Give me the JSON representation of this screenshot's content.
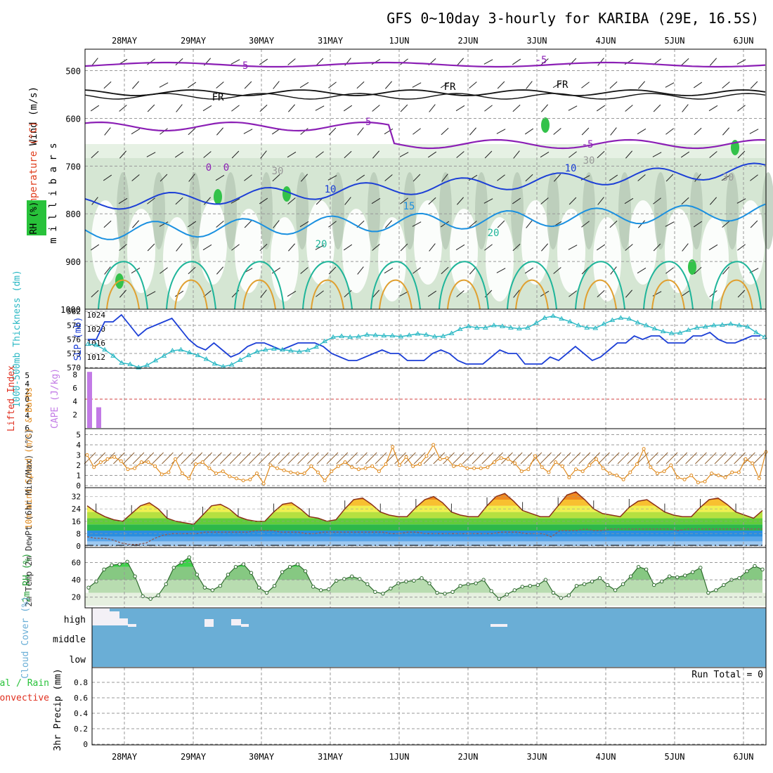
{
  "title": "GFS 0~10day 3-hourly for KARIBA (29E, 16.5S)",
  "dates": [
    "28MAY",
    "29MAY",
    "30MAY",
    "31MAY",
    "1JUN",
    "2JUN",
    "3JUN",
    "4JUN",
    "5JUN",
    "6JUN"
  ],
  "colors": {
    "purple": "#8b1fb5",
    "blue": "#1c3fd6",
    "ltblue": "#1a90e0",
    "teal": "#1fb59a",
    "orange": "#e0a030",
    "cyan": "#2ab8c4",
    "cape": "#c27ae6",
    "wind": "#e08a1c",
    "sky": "#6aaed6",
    "grid": "#999999"
  },
  "chart_data": [
    {
      "type": "contour",
      "name": "upper-air",
      "ylabel_parts": [
        "Wind (m/s)",
        "Temperature (°C)",
        "RH (%)"
      ],
      "yunits": "millibars",
      "yticks": [
        500,
        600,
        700,
        800,
        900,
        1000
      ],
      "ylim": [
        1000,
        455
      ],
      "contour_labels": [
        "-5",
        "-5",
        "-5",
        "-5",
        "FR",
        "FR",
        "FR",
        "0",
        "0",
        "10",
        "10",
        "15",
        "20",
        "20",
        "30",
        "30",
        "30"
      ]
    },
    {
      "type": "line",
      "name": "thickness-slp",
      "ylabel_left": "1000-500mb Thickness (dm)",
      "ylabel_right": "SLP (mb)",
      "left_ticks": [
        570,
        573,
        576,
        579,
        582
      ],
      "right_ticks": [
        1012,
        1016,
        1020,
        1024
      ],
      "series": [
        {
          "name": "SLP (mb)",
          "values": [
            1017,
            1017,
            1022,
            1022,
            1024,
            1021,
            1018,
            1020,
            1021,
            1022,
            1023,
            1020,
            1017,
            1015,
            1014,
            1016,
            1014,
            1012,
            1013,
            1015,
            1016,
            1016,
            1015,
            1014,
            1015,
            1016,
            1016,
            1016,
            1015,
            1013,
            1012,
            1011,
            1011,
            1012,
            1013,
            1014,
            1013,
            1013,
            1011,
            1011,
            1011,
            1013,
            1014,
            1013,
            1011,
            1010,
            1010,
            1010,
            1012,
            1014,
            1013,
            1013,
            1010,
            1010,
            1010,
            1012,
            1011,
            1013,
            1015,
            1013,
            1011,
            1012,
            1014,
            1016,
            1016,
            1018,
            1017,
            1018,
            1018,
            1016,
            1016,
            1016,
            1018,
            1018,
            1019,
            1017,
            1016,
            1016,
            1017,
            1018,
            1018
          ]
        },
        {
          "name": "1000-500mb Thickness (dm)",
          "values": [
            575.0,
            574.8,
            573.8,
            572.5,
            571.0,
            570.7,
            570.0,
            570.5,
            571.5,
            572.5,
            573.6,
            573.8,
            573.2,
            572.6,
            571.8,
            570.8,
            570.2,
            570.6,
            571.6,
            572.6,
            573.4,
            573.8,
            574.0,
            573.8,
            573.6,
            573.4,
            573.7,
            574.4,
            575.6,
            576.5,
            576.7,
            576.5,
            576.6,
            577.0,
            576.9,
            576.8,
            576.8,
            576.6,
            576.9,
            577.2,
            577.0,
            576.6,
            576.7,
            577.3,
            578.2,
            578.8,
            578.5,
            578.5,
            579.0,
            578.8,
            578.5,
            578.3,
            578.5,
            579.5,
            580.6,
            581.0,
            580.4,
            579.8,
            579.0,
            578.5,
            578.4,
            579.3,
            580.1,
            580.6,
            580.4,
            579.6,
            579.0,
            578.3,
            577.7,
            577.3,
            577.4,
            578.0,
            578.5,
            578.7,
            579.0,
            579.1,
            579.3,
            579.0,
            578.7,
            577.5,
            576.5
          ]
        }
      ]
    },
    {
      "type": "bar",
      "name": "cape-lifted-index",
      "ylabel_left": "Lifted Index",
      "ylabel_right": "CAPE (J/kg)",
      "li_ticks": [
        -5,
        -4,
        -2,
        0,
        2,
        4,
        6
      ],
      "cape_ticks": [
        2,
        4,
        6,
        8
      ],
      "series": [
        {
          "name": "CAPE (J/kg)",
          "values": [
            [
              0,
              8.4
            ],
            [
              2,
              3.1
            ]
          ]
        }
      ]
    },
    {
      "type": "line",
      "name": "wind-10m",
      "ylabel": "10m Wind Speed (m/s) & Barbs",
      "yticks": [
        0,
        1,
        2,
        3,
        4,
        5
      ],
      "ylim": [
        0,
        5
      ],
      "series": [
        {
          "name": "10m Wind Speed",
          "values": [
            3.0,
            1.8,
            2.3,
            2.6,
            2.8,
            2.4,
            1.6,
            1.7,
            2.3,
            2.3,
            1.9,
            1.1,
            1.3,
            2.6,
            1.2,
            0.7,
            2.1,
            2.3,
            1.7,
            1.2,
            1.4,
            0.9,
            0.7,
            0.5,
            0.6,
            1.2,
            0.2,
            2.0,
            1.7,
            1.5,
            1.3,
            1.2,
            1.2,
            1.9,
            1.3,
            0.5,
            1.4,
            1.9,
            2.3,
            1.8,
            1.6,
            1.7,
            1.9,
            1.4,
            2.1,
            3.8,
            2.0,
            2.8,
            1.9,
            2.1,
            2.9,
            4.0,
            2.6,
            2.7,
            1.9,
            2.0,
            1.7,
            1.7,
            1.7,
            1.8,
            2.3,
            2.7,
            2.6,
            2.2,
            1.4,
            1.6,
            2.9,
            1.8,
            1.3,
            2.3,
            1.9,
            0.8,
            1.6,
            1.4,
            2.0,
            2.6,
            1.7,
            1.2,
            1.0,
            0.6,
            1.3,
            2.1,
            3.6,
            1.8,
            1.2,
            1.4,
            2.0,
            0.8,
            0.6,
            1.0,
            0.3,
            0.4,
            1.2,
            1.0,
            0.8,
            1.3,
            1.3,
            2.6,
            2.2,
            0.7,
            3.3
          ]
        }
      ]
    },
    {
      "type": "area",
      "name": "temperature-2m",
      "ylabel": "2m Temp 2m DewPt (6hr Min/Max) (°C)",
      "yticks": [
        0,
        8,
        16,
        24,
        32
      ],
      "ylim": [
        0,
        36
      ],
      "series": [
        {
          "name": "2m Temp",
          "values": [
            26,
            22,
            19,
            17,
            16,
            21,
            26,
            28,
            24,
            18,
            16,
            15,
            14,
            20,
            26,
            27,
            24,
            19,
            17,
            16,
            16,
            22,
            27,
            28,
            24,
            19,
            18,
            16,
            17,
            24,
            30,
            31,
            27,
            22,
            20,
            19,
            19,
            25,
            30,
            32,
            28,
            22,
            20,
            19,
            19,
            26,
            32,
            34,
            29,
            23,
            21,
            19,
            19,
            26,
            33,
            35,
            30,
            24,
            21,
            20,
            19,
            25,
            29,
            30,
            26,
            22,
            20,
            19,
            19,
            25,
            30,
            31,
            27,
            22,
            20,
            18,
            23
          ]
        },
        {
          "name": "2m DewPt",
          "values": [
            6,
            5,
            5,
            4,
            2,
            1,
            1,
            2,
            5,
            7,
            8,
            8,
            8,
            8,
            9,
            9,
            9,
            9,
            9,
            9,
            10,
            10,
            10,
            9,
            9,
            9,
            8,
            8,
            9,
            9,
            9,
            9,
            9,
            9,
            9,
            9,
            8,
            8,
            9,
            9,
            8,
            8,
            8,
            8,
            8,
            8,
            8,
            8,
            8,
            9,
            9,
            9,
            8,
            8,
            8,
            6,
            10,
            10,
            10,
            11,
            10,
            10,
            11,
            11,
            11,
            11,
            11,
            11,
            11,
            11,
            10,
            11,
            11,
            11,
            11,
            11,
            11,
            11,
            11,
            11,
            11
          ]
        }
      ]
    },
    {
      "type": "area",
      "name": "rh-2m",
      "ylabel": "2m RH (%)",
      "yticks": [
        20,
        40,
        60
      ],
      "ylim": [
        10,
        70
      ],
      "series": [
        {
          "name": "2m RH",
          "values": [
            31,
            38,
            52,
            57,
            58,
            61,
            44,
            21,
            18,
            22,
            35,
            54,
            60,
            66,
            46,
            31,
            28,
            33,
            46,
            55,
            58,
            48,
            31,
            25,
            33,
            49,
            55,
            58,
            50,
            32,
            28,
            29,
            39,
            41,
            44,
            41,
            35,
            26,
            24,
            30,
            36,
            38,
            39,
            42,
            36,
            25,
            24,
            26,
            33,
            35,
            36,
            40,
            27,
            18,
            23,
            28,
            32,
            33,
            34,
            40,
            25,
            19,
            22,
            33,
            35,
            38,
            42,
            34,
            28,
            35,
            44,
            55,
            52,
            34,
            38,
            44,
            43,
            45,
            49,
            54,
            25,
            28,
            34,
            40,
            42,
            50,
            56,
            52
          ]
        }
      ]
    },
    {
      "type": "heatmap",
      "name": "cloud-cover",
      "ylabel": "Cloud Cover (%)",
      "levels": [
        "high",
        "middle",
        "low"
      ]
    },
    {
      "type": "bar",
      "name": "precipitation",
      "ylabel": "3hr Precip (mm)",
      "legend": [
        "Total / Rain",
        "Convective"
      ],
      "yticks": [
        0,
        0.2,
        0.4,
        0.6,
        0.8
      ],
      "ylim": [
        0,
        1
      ],
      "annotation": "Run Total = 0",
      "values": []
    }
  ]
}
